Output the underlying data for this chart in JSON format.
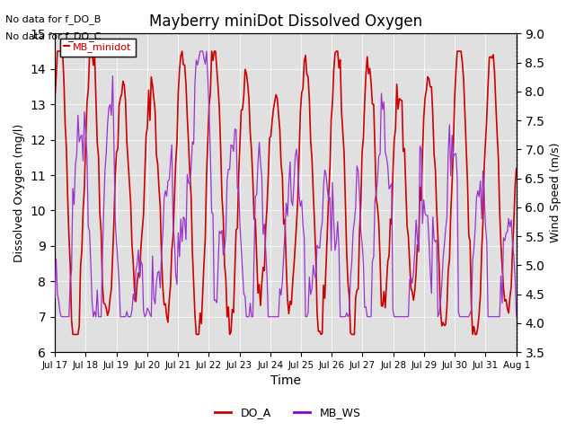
{
  "title": "Mayberry miniDot Dissolved Oxygen",
  "xlabel": "Time",
  "ylabel_left": "Dissolved Oxygen (mg/l)",
  "ylabel_right": "Wind Speed (m/s)",
  "annotation_line1": "No data for f_DO_B",
  "annotation_line2": "No data for f_DO_C",
  "legend_label_box": "MB_minidot",
  "legend_entries": [
    "DO_A",
    "MB_WS"
  ],
  "legend_colors": [
    "#cc0000",
    "#8800cc"
  ],
  "ylim_left": [
    6.0,
    15.0
  ],
  "ylim_right": [
    3.5,
    9.0
  ],
  "yticks_left": [
    6.0,
    7.0,
    8.0,
    9.0,
    10.0,
    11.0,
    12.0,
    13.0,
    14.0,
    15.0
  ],
  "yticks_right": [
    3.5,
    4.0,
    4.5,
    5.0,
    5.5,
    6.0,
    6.5,
    7.0,
    7.5,
    8.0,
    8.5,
    9.0
  ],
  "background_gray": "#e0e0e0",
  "do_color": "#cc0000",
  "ws_color": "#9933cc",
  "do_linewidth": 1.2,
  "ws_linewidth": 0.9,
  "n_days": 15,
  "hours_per_day": 24,
  "do_base": 10.5,
  "do_amp": 3.6,
  "do_period": 1.0,
  "ws_base": 6.5,
  "ws_amp": 2.0,
  "seed": 42
}
